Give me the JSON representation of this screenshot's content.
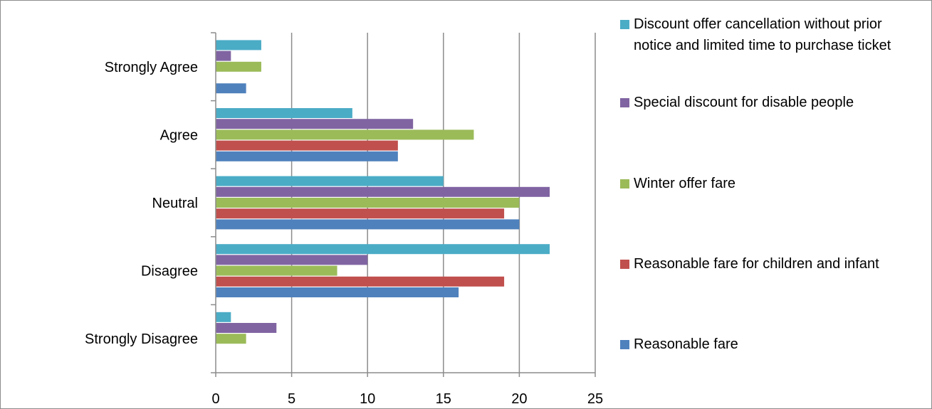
{
  "chart_data": {
    "type": "bar",
    "orientation": "horizontal",
    "categories": [
      "Strongly Disagree",
      "Disagree",
      "Neutral",
      "Agree",
      "Strongly Agree"
    ],
    "series": [
      {
        "name": "Reasonable fare",
        "color": "#4F81BD",
        "values": [
          0,
          16,
          20,
          12,
          2
        ]
      },
      {
        "name": "Reasonable fare for children and infant",
        "color": "#C0504D",
        "values": [
          0,
          19,
          19,
          12,
          0
        ]
      },
      {
        "name": "Winter offer fare",
        "color": "#9BBB59",
        "values": [
          2,
          8,
          20,
          17,
          3
        ]
      },
      {
        "name": "Special discount for disable people",
        "color": "#8064A2",
        "values": [
          4,
          10,
          22,
          13,
          1
        ]
      },
      {
        "name": "Discount offer cancellation without prior notice and limited time to purchase ticket",
        "color": "#4BACC6",
        "values": [
          1,
          22,
          15,
          9,
          3
        ]
      }
    ],
    "xlim": [
      0,
      25
    ],
    "xticks": [
      "0",
      "5",
      "10",
      "15",
      "20",
      "25"
    ],
    "grid": true,
    "legend": "right",
    "gridline_color": "#8c8c8c"
  }
}
